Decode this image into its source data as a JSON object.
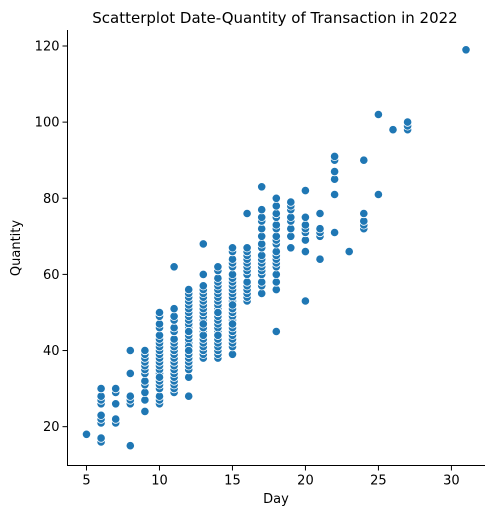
{
  "chart_data": {
    "type": "scatter",
    "title": "Scatterplot Date-Quantity of Transaction in 2022",
    "xlabel": "Day",
    "ylabel": "Quantity",
    "xlim": [
      3.7,
      32.3
    ],
    "ylim": [
      9.8,
      124.2
    ],
    "xticks": [
      5,
      10,
      15,
      20,
      25,
      30
    ],
    "yticks": [
      20,
      40,
      60,
      80,
      100,
      120
    ],
    "grid": false,
    "point_color": "#1f77b4",
    "x": [
      5,
      6,
      6,
      6,
      6,
      6,
      6,
      6,
      6,
      6,
      7,
      7,
      7,
      7,
      7,
      8,
      8,
      8,
      8,
      8,
      8,
      8,
      9,
      9,
      9,
      9,
      9,
      9,
      9,
      9,
      9,
      9,
      9,
      9,
      10,
      10,
      10,
      10,
      10,
      10,
      10,
      10,
      10,
      10,
      10,
      10,
      10,
      10,
      10,
      10,
      10,
      10,
      10,
      10,
      10,
      10,
      10,
      11,
      11,
      11,
      11,
      11,
      11,
      11,
      11,
      11,
      11,
      11,
      11,
      11,
      11,
      11,
      11,
      11,
      11,
      11,
      11,
      11,
      12,
      12,
      12,
      12,
      12,
      12,
      12,
      12,
      12,
      12,
      12,
      12,
      12,
      12,
      12,
      12,
      12,
      12,
      12,
      12,
      12,
      12,
      12,
      12,
      12,
      12,
      12,
      12,
      13,
      13,
      13,
      13,
      13,
      13,
      13,
      13,
      13,
      13,
      13,
      13,
      13,
      13,
      13,
      13,
      13,
      13,
      13,
      13,
      13,
      13,
      13,
      13,
      13,
      14,
      14,
      14,
      14,
      14,
      14,
      14,
      14,
      14,
      14,
      14,
      14,
      14,
      14,
      14,
      14,
      14,
      14,
      14,
      14,
      14,
      14,
      14,
      14,
      14,
      14,
      15,
      15,
      15,
      15,
      15,
      15,
      15,
      15,
      15,
      15,
      15,
      15,
      15,
      15,
      15,
      15,
      15,
      15,
      15,
      15,
      15,
      15,
      15,
      15,
      15,
      15,
      15,
      15,
      15,
      16,
      16,
      16,
      16,
      16,
      16,
      16,
      16,
      16,
      16,
      16,
      16,
      16,
      16,
      16,
      17,
      17,
      17,
      17,
      17,
      17,
      17,
      17,
      17,
      17,
      17,
      17,
      17,
      17,
      17,
      17,
      17,
      18,
      18,
      18,
      18,
      18,
      18,
      18,
      18,
      18,
      18,
      18,
      18,
      18,
      18,
      18,
      18,
      18,
      18,
      19,
      19,
      19,
      19,
      19,
      19,
      19,
      19,
      20,
      20,
      20,
      20,
      20,
      20,
      20,
      20,
      21,
      21,
      21,
      21,
      21,
      22,
      22,
      22,
      22,
      22,
      22,
      23,
      24,
      24,
      24,
      24,
      24,
      25,
      25,
      26,
      27,
      27,
      27,
      31
    ],
    "y": [
      18,
      16,
      17,
      21,
      22,
      23,
      26,
      27,
      28,
      30,
      21,
      22,
      26,
      29,
      30,
      15,
      26,
      27,
      28,
      34,
      40,
      34,
      24,
      27,
      29,
      31,
      32,
      34,
      35,
      36,
      37,
      38,
      39,
      40,
      26,
      27,
      28,
      30,
      31,
      32,
      33,
      34,
      35,
      36,
      37,
      38,
      39,
      40,
      41,
      42,
      43,
      44,
      46,
      47,
      49,
      50,
      33,
      29,
      30,
      31,
      32,
      33,
      34,
      35,
      36,
      37,
      38,
      39,
      40,
      41,
      42,
      43,
      45,
      46,
      48,
      49,
      51,
      62,
      28,
      33,
      35,
      36,
      37,
      38,
      39,
      40,
      41,
      42,
      43,
      44,
      45,
      46,
      47,
      48,
      49,
      50,
      51,
      52,
      53,
      54,
      55,
      56,
      41,
      39,
      40,
      45,
      38,
      39,
      40,
      41,
      42,
      43,
      44,
      45,
      46,
      47,
      48,
      49,
      50,
      51,
      52,
      53,
      54,
      55,
      56,
      57,
      60,
      68,
      44,
      46,
      47,
      38,
      39,
      40,
      41,
      42,
      43,
      44,
      45,
      46,
      47,
      48,
      49,
      50,
      51,
      52,
      53,
      54,
      55,
      56,
      57,
      58,
      59,
      61,
      62,
      44,
      50,
      39,
      41,
      42,
      43,
      44,
      45,
      46,
      47,
      48,
      49,
      50,
      51,
      52,
      53,
      54,
      55,
      56,
      57,
      58,
      59,
      60,
      62,
      63,
      64,
      66,
      67,
      47,
      51,
      52,
      53,
      54,
      55,
      56,
      57,
      58,
      60,
      61,
      62,
      63,
      64,
      65,
      66,
      67,
      76,
      55,
      57,
      58,
      60,
      61,
      62,
      63,
      64,
      65,
      67,
      68,
      70,
      72,
      74,
      75,
      77,
      83,
      45,
      56,
      58,
      60,
      62,
      63,
      64,
      65,
      66,
      68,
      69,
      70,
      72,
      73,
      75,
      76,
      78,
      80,
      67,
      70,
      72,
      74,
      75,
      77,
      78,
      79,
      53,
      66,
      69,
      71,
      72,
      73,
      75,
      82,
      64,
      70,
      71,
      72,
      76,
      71,
      81,
      85,
      87,
      90,
      91,
      66,
      72,
      73,
      74,
      76,
      90,
      81,
      102,
      98,
      98,
      99,
      100,
      119
    ]
  }
}
